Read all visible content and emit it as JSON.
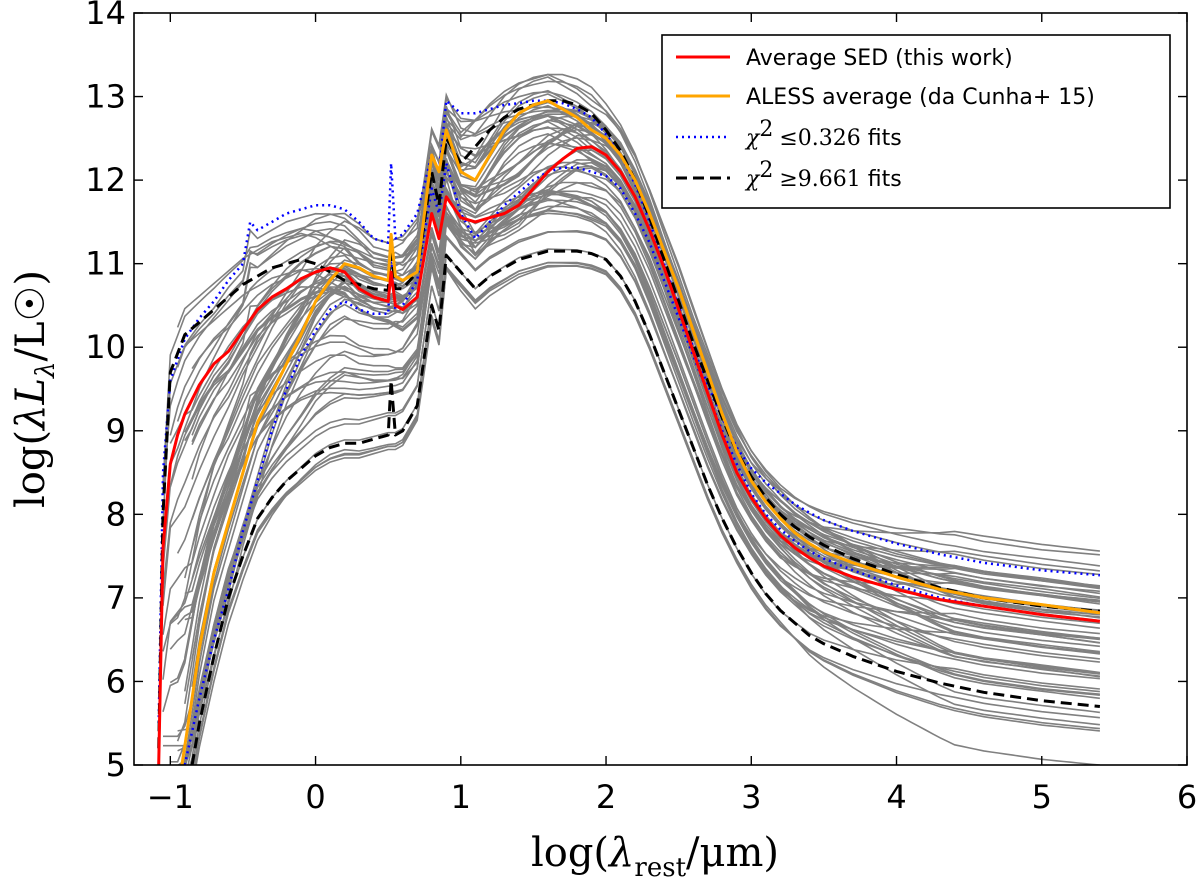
{
  "chart_data": {
    "type": "line",
    "xlabel": {
      "prefix": "log(",
      "symbol": "λ",
      "sub": "rest",
      "suffix": "/μm)"
    },
    "ylabel": {
      "prefix": "log(",
      "symbol": "λL",
      "sub": "λ",
      "suffix": "/L☉)"
    },
    "xlim": [
      -1.25,
      6
    ],
    "ylim": [
      5,
      14
    ],
    "x_ticks": [
      -1,
      0,
      1,
      2,
      3,
      4,
      5,
      6
    ],
    "y_ticks": [
      5,
      6,
      7,
      8,
      9,
      10,
      11,
      12,
      13,
      14
    ],
    "x_tick_labels": [
      "−1",
      "0",
      "1",
      "2",
      "3",
      "4",
      "5",
      "6"
    ],
    "y_tick_labels": [
      "5",
      "6",
      "7",
      "8",
      "9",
      "10",
      "11",
      "12",
      "13",
      "14"
    ],
    "grid": false,
    "legend": {
      "placement": "top-right",
      "entries": [
        {
          "label": "Average SED (this work)",
          "color": "#ff0000",
          "style": "solid"
        },
        {
          "label": "ALESS average (da Cunha+ 15)",
          "color": "#ffa500",
          "style": "solid"
        },
        {
          "label_math": "χ",
          "label_sup": "2",
          "label_rel": "≤0.326",
          "label_text": " fits",
          "color": "#0000ff",
          "style": "dotted"
        },
        {
          "label_math": "χ",
          "label_sup": "2",
          "label_rel": "≥9.661",
          "label_text": " fits",
          "color": "#000000",
          "style": "dashed"
        }
      ]
    },
    "background_models": {
      "color": "#808080",
      "count": 64,
      "description_free": true
    },
    "series": [
      {
        "key": "average_sed",
        "color": "#ff0000",
        "style": "solid",
        "x": [
          -1.08,
          -1.05,
          -1.0,
          -0.95,
          -0.9,
          -0.8,
          -0.7,
          -0.6,
          -0.5,
          -0.4,
          -0.3,
          -0.2,
          -0.1,
          0.0,
          0.1,
          0.2,
          0.3,
          0.4,
          0.5,
          0.52,
          0.55,
          0.6,
          0.7,
          0.8,
          0.85,
          0.9,
          1.0,
          1.1,
          1.2,
          1.3,
          1.4,
          1.5,
          1.6,
          1.7,
          1.8,
          1.9,
          2.0,
          2.1,
          2.2,
          2.3,
          2.4,
          2.5,
          2.6,
          2.7,
          2.8,
          2.9,
          3.0,
          3.1,
          3.2,
          3.3,
          3.4,
          3.5,
          3.7,
          4.0,
          4.3,
          4.6,
          5.0,
          5.4
        ],
        "y": [
          5.0,
          7.6,
          8.6,
          8.95,
          9.2,
          9.55,
          9.8,
          9.95,
          10.2,
          10.45,
          10.6,
          10.7,
          10.82,
          10.9,
          10.95,
          10.9,
          10.7,
          10.6,
          10.55,
          10.9,
          10.5,
          10.45,
          10.6,
          11.6,
          11.3,
          11.8,
          11.55,
          11.5,
          11.55,
          11.6,
          11.7,
          11.9,
          12.1,
          12.25,
          12.38,
          12.4,
          12.3,
          12.1,
          11.8,
          11.4,
          10.95,
          10.45,
          9.95,
          9.45,
          8.95,
          8.5,
          8.2,
          7.95,
          7.75,
          7.6,
          7.48,
          7.38,
          7.25,
          7.1,
          6.98,
          6.9,
          6.8,
          6.72
        ]
      },
      {
        "key": "aless_average",
        "color": "#ffa500",
        "style": "solid",
        "x": [
          -0.92,
          -0.85,
          -0.8,
          -0.7,
          -0.6,
          -0.5,
          -0.4,
          -0.3,
          -0.2,
          -0.1,
          0.0,
          0.1,
          0.2,
          0.3,
          0.4,
          0.5,
          0.52,
          0.55,
          0.6,
          0.7,
          0.8,
          0.85,
          0.9,
          1.0,
          1.1,
          1.2,
          1.3,
          1.4,
          1.5,
          1.6,
          1.7,
          1.8,
          1.9,
          2.0,
          2.1,
          2.2,
          2.3,
          2.4,
          2.5,
          2.6,
          2.7,
          2.8,
          2.9,
          3.0,
          3.1,
          3.2,
          3.3,
          3.4,
          3.5,
          3.7,
          4.0,
          4.3,
          4.6,
          5.0,
          5.4
        ],
        "y": [
          5.0,
          5.8,
          6.4,
          7.3,
          7.9,
          8.5,
          9.1,
          9.45,
          9.8,
          10.15,
          10.55,
          10.8,
          11.0,
          10.95,
          10.85,
          10.8,
          11.35,
          10.85,
          10.8,
          10.9,
          12.3,
          12.1,
          12.6,
          12.1,
          12.0,
          12.3,
          12.6,
          12.8,
          12.9,
          12.95,
          12.85,
          12.75,
          12.6,
          12.5,
          12.3,
          12.0,
          11.6,
          11.15,
          10.7,
          10.2,
          9.7,
          9.2,
          8.75,
          8.4,
          8.15,
          7.95,
          7.78,
          7.65,
          7.55,
          7.42,
          7.25,
          7.1,
          7.0,
          6.92,
          6.82
        ]
      },
      {
        "key": "best_fit_upper",
        "color": "#0000ff",
        "style": "dotted",
        "x": [
          -1.08,
          -1.05,
          -1.0,
          -0.9,
          -0.8,
          -0.7,
          -0.6,
          -0.5,
          -0.45,
          -0.4,
          -0.3,
          -0.2,
          -0.1,
          0.0,
          0.1,
          0.2,
          0.3,
          0.4,
          0.5,
          0.52,
          0.55,
          0.6,
          0.7,
          0.8,
          0.85,
          0.9,
          1.0,
          1.1,
          1.2,
          1.3,
          1.4,
          1.5,
          1.6,
          1.7,
          1.8,
          1.9,
          2.0,
          2.1,
          2.2,
          2.3,
          2.4,
          2.5,
          2.6,
          2.7,
          2.8,
          2.9,
          3.0,
          3.1,
          3.2,
          3.3,
          3.4,
          3.5,
          3.7,
          4.0,
          4.3,
          4.6,
          5.0,
          5.4
        ],
        "y": [
          5.5,
          8.5,
          9.6,
          10.1,
          10.35,
          10.55,
          10.8,
          11.0,
          11.5,
          11.4,
          11.5,
          11.6,
          11.65,
          11.7,
          11.7,
          11.65,
          11.5,
          11.3,
          11.25,
          12.2,
          11.3,
          11.35,
          11.6,
          12.3,
          12.1,
          12.95,
          12.8,
          12.8,
          12.85,
          12.9,
          12.92,
          12.95,
          12.95,
          12.92,
          12.85,
          12.75,
          12.55,
          12.3,
          11.95,
          11.5,
          11.0,
          10.5,
          10.0,
          9.55,
          9.15,
          8.8,
          8.55,
          8.38,
          8.25,
          8.12,
          8.02,
          7.93,
          7.8,
          7.65,
          7.52,
          7.42,
          7.33,
          7.27
        ]
      },
      {
        "key": "best_fit_lower",
        "color": "#0000ff",
        "style": "dotted",
        "x": [
          -0.9,
          -0.8,
          -0.7,
          -0.6,
          -0.5,
          -0.4,
          -0.3,
          -0.2,
          -0.1,
          0.0,
          0.1,
          0.2,
          0.3,
          0.4,
          0.5,
          0.52,
          0.55,
          0.6,
          0.7,
          0.8,
          0.85,
          0.9,
          1.0,
          1.1,
          1.2,
          1.3,
          1.4,
          1.5,
          1.6,
          1.7,
          1.8,
          1.9,
          2.0,
          2.1,
          2.2,
          2.3,
          2.4,
          2.5,
          2.6,
          2.7,
          2.8,
          2.9,
          3.0,
          3.1,
          3.2,
          3.3,
          3.4,
          3.5,
          3.7,
          4.0,
          4.3,
          4.6,
          5.0,
          5.4
        ],
        "y": [
          5.0,
          5.8,
          6.5,
          7.1,
          7.8,
          8.4,
          9.0,
          9.5,
          9.9,
          10.2,
          10.45,
          10.55,
          10.45,
          10.4,
          10.4,
          11.1,
          10.45,
          10.5,
          10.8,
          11.9,
          11.6,
          12.2,
          11.6,
          11.3,
          11.5,
          11.7,
          11.85,
          12.0,
          12.1,
          12.15,
          12.15,
          12.1,
          12.05,
          11.9,
          11.6,
          11.25,
          10.8,
          10.35,
          9.9,
          9.45,
          9.0,
          8.6,
          8.25,
          8.0,
          7.82,
          7.68,
          7.56,
          7.47,
          7.33,
          7.15,
          7.0,
          6.9,
          6.8,
          6.72
        ]
      },
      {
        "key": "worst_fit_upper",
        "color": "#000000",
        "style": "dashed",
        "x": [
          -1.08,
          -1.05,
          -1.0,
          -0.9,
          -0.8,
          -0.7,
          -0.6,
          -0.5,
          -0.4,
          -0.3,
          -0.2,
          -0.1,
          0.0,
          0.1,
          0.2,
          0.3,
          0.4,
          0.5,
          0.52,
          0.55,
          0.6,
          0.7,
          0.8,
          0.85,
          0.9,
          1.0,
          1.1,
          1.2,
          1.3,
          1.4,
          1.5,
          1.6,
          1.7,
          1.8,
          1.9,
          2.0,
          2.1,
          2.2,
          2.3,
          2.4,
          2.5,
          2.6,
          2.7,
          2.8,
          2.9,
          3.0,
          3.1,
          3.2,
          3.3,
          3.4,
          3.5,
          3.7,
          4.0,
          4.3,
          4.6,
          5.0,
          5.4
        ],
        "y": [
          5.2,
          8.0,
          9.7,
          10.15,
          10.3,
          10.45,
          10.6,
          10.75,
          10.85,
          10.95,
          11.0,
          11.05,
          11.0,
          10.9,
          10.8,
          10.75,
          10.7,
          10.68,
          11.2,
          10.7,
          10.7,
          10.9,
          12.1,
          11.7,
          12.5,
          12.2,
          12.4,
          12.6,
          12.75,
          12.85,
          12.9,
          12.95,
          12.95,
          12.9,
          12.8,
          12.6,
          12.35,
          12.0,
          11.55,
          11.05,
          10.55,
          10.05,
          9.6,
          9.15,
          8.75,
          8.45,
          8.2,
          8.0,
          7.85,
          7.73,
          7.63,
          7.47,
          7.28,
          7.12,
          7.0,
          6.9,
          6.84
        ]
      },
      {
        "key": "worst_fit_lower",
        "color": "#000000",
        "style": "dashed",
        "x": [
          -0.85,
          -0.8,
          -0.7,
          -0.6,
          -0.5,
          -0.4,
          -0.3,
          -0.2,
          -0.1,
          0.0,
          0.1,
          0.2,
          0.3,
          0.4,
          0.5,
          0.52,
          0.55,
          0.6,
          0.7,
          0.8,
          0.85,
          0.9,
          1.0,
          1.1,
          1.2,
          1.3,
          1.4,
          1.5,
          1.6,
          1.7,
          1.8,
          1.9,
          2.0,
          2.1,
          2.2,
          2.3,
          2.4,
          2.5,
          2.6,
          2.7,
          2.8,
          2.9,
          3.0,
          3.1,
          3.2,
          3.3,
          3.4,
          3.5,
          3.7,
          4.0,
          4.3,
          4.6,
          5.0,
          5.4
        ],
        "y": [
          5.0,
          5.5,
          6.3,
          7.0,
          7.5,
          7.95,
          8.2,
          8.4,
          8.55,
          8.7,
          8.8,
          8.85,
          8.85,
          8.9,
          8.95,
          9.6,
          8.95,
          9.0,
          9.3,
          10.5,
          10.2,
          11.1,
          10.9,
          10.7,
          10.85,
          10.95,
          11.05,
          11.1,
          11.15,
          11.15,
          11.15,
          11.12,
          11.05,
          10.85,
          10.55,
          10.15,
          9.7,
          9.25,
          8.8,
          8.35,
          7.95,
          7.6,
          7.3,
          7.05,
          6.85,
          6.7,
          6.55,
          6.45,
          6.3,
          6.12,
          5.98,
          5.87,
          5.77,
          5.7
        ]
      }
    ]
  }
}
